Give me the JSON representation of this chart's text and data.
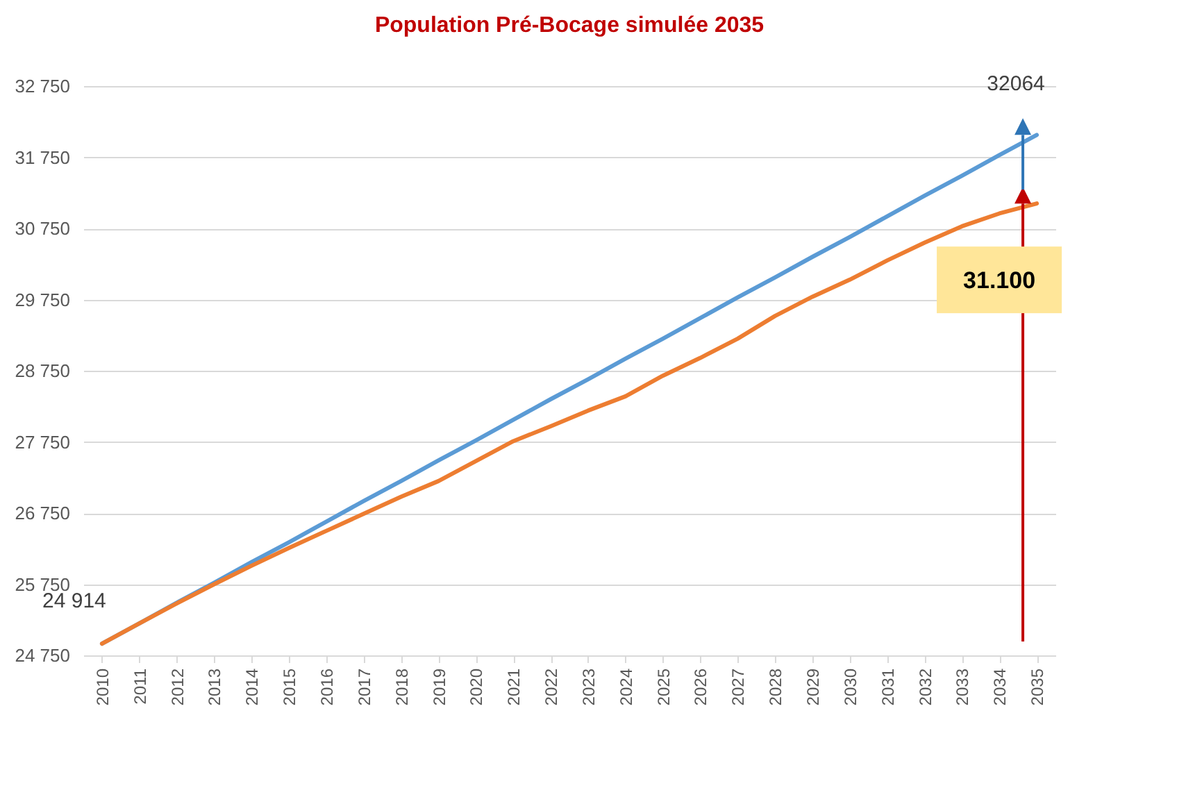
{
  "chart_data": {
    "type": "line",
    "title": "Population Pré-Bocage simulée 2035",
    "categories": [
      "2010",
      "2011",
      "2012",
      "2013",
      "2014",
      "2015",
      "2016",
      "2017",
      "2018",
      "2019",
      "2020",
      "2021",
      "2022",
      "2023",
      "2024",
      "2025",
      "2026",
      "2027",
      "2028",
      "2029",
      "2030",
      "2031",
      "2032",
      "2033",
      "2034",
      "2035"
    ],
    "series": [
      {
        "color": "#5b9bd5",
        "values": [
          24914,
          25200,
          25490,
          25770,
          26060,
          26340,
          26630,
          26920,
          27200,
          27490,
          27770,
          28060,
          28350,
          28630,
          28920,
          29200,
          29490,
          29780,
          30060,
          30350,
          30630,
          30920,
          31210,
          31490,
          31780,
          32064
        ]
      },
      {
        "color": "#ed7d31",
        "values": [
          24914,
          25200,
          25480,
          25750,
          26010,
          26260,
          26500,
          26740,
          26980,
          27200,
          27480,
          27760,
          27970,
          28190,
          28390,
          28680,
          28930,
          29200,
          29520,
          29790,
          30030,
          30300,
          30550,
          30780,
          30960,
          31100
        ]
      }
    ],
    "ylim": [
      24750,
      32750
    ],
    "yticks": [
      {
        "value": 24750,
        "label": "24 750"
      },
      {
        "value": 25750,
        "label": "25 750"
      },
      {
        "value": 26750,
        "label": "26 750"
      },
      {
        "value": 27750,
        "label": "27 750"
      },
      {
        "value": 28750,
        "label": "28 750"
      },
      {
        "value": 29750,
        "label": "29 750"
      },
      {
        "value": 30750,
        "label": "30 750"
      },
      {
        "value": 31750,
        "label": "31 750"
      },
      {
        "value": 32750,
        "label": "32 750"
      }
    ],
    "grid": "y",
    "line_style": "solid",
    "marker": "none",
    "annotations": [
      {
        "text": "24 914",
        "x": "2010",
        "y": 24914
      },
      {
        "text": "32064",
        "x": "2035",
        "y": 32064
      },
      {
        "text": "31.100",
        "x": "2035",
        "y": 31100
      }
    ]
  }
}
